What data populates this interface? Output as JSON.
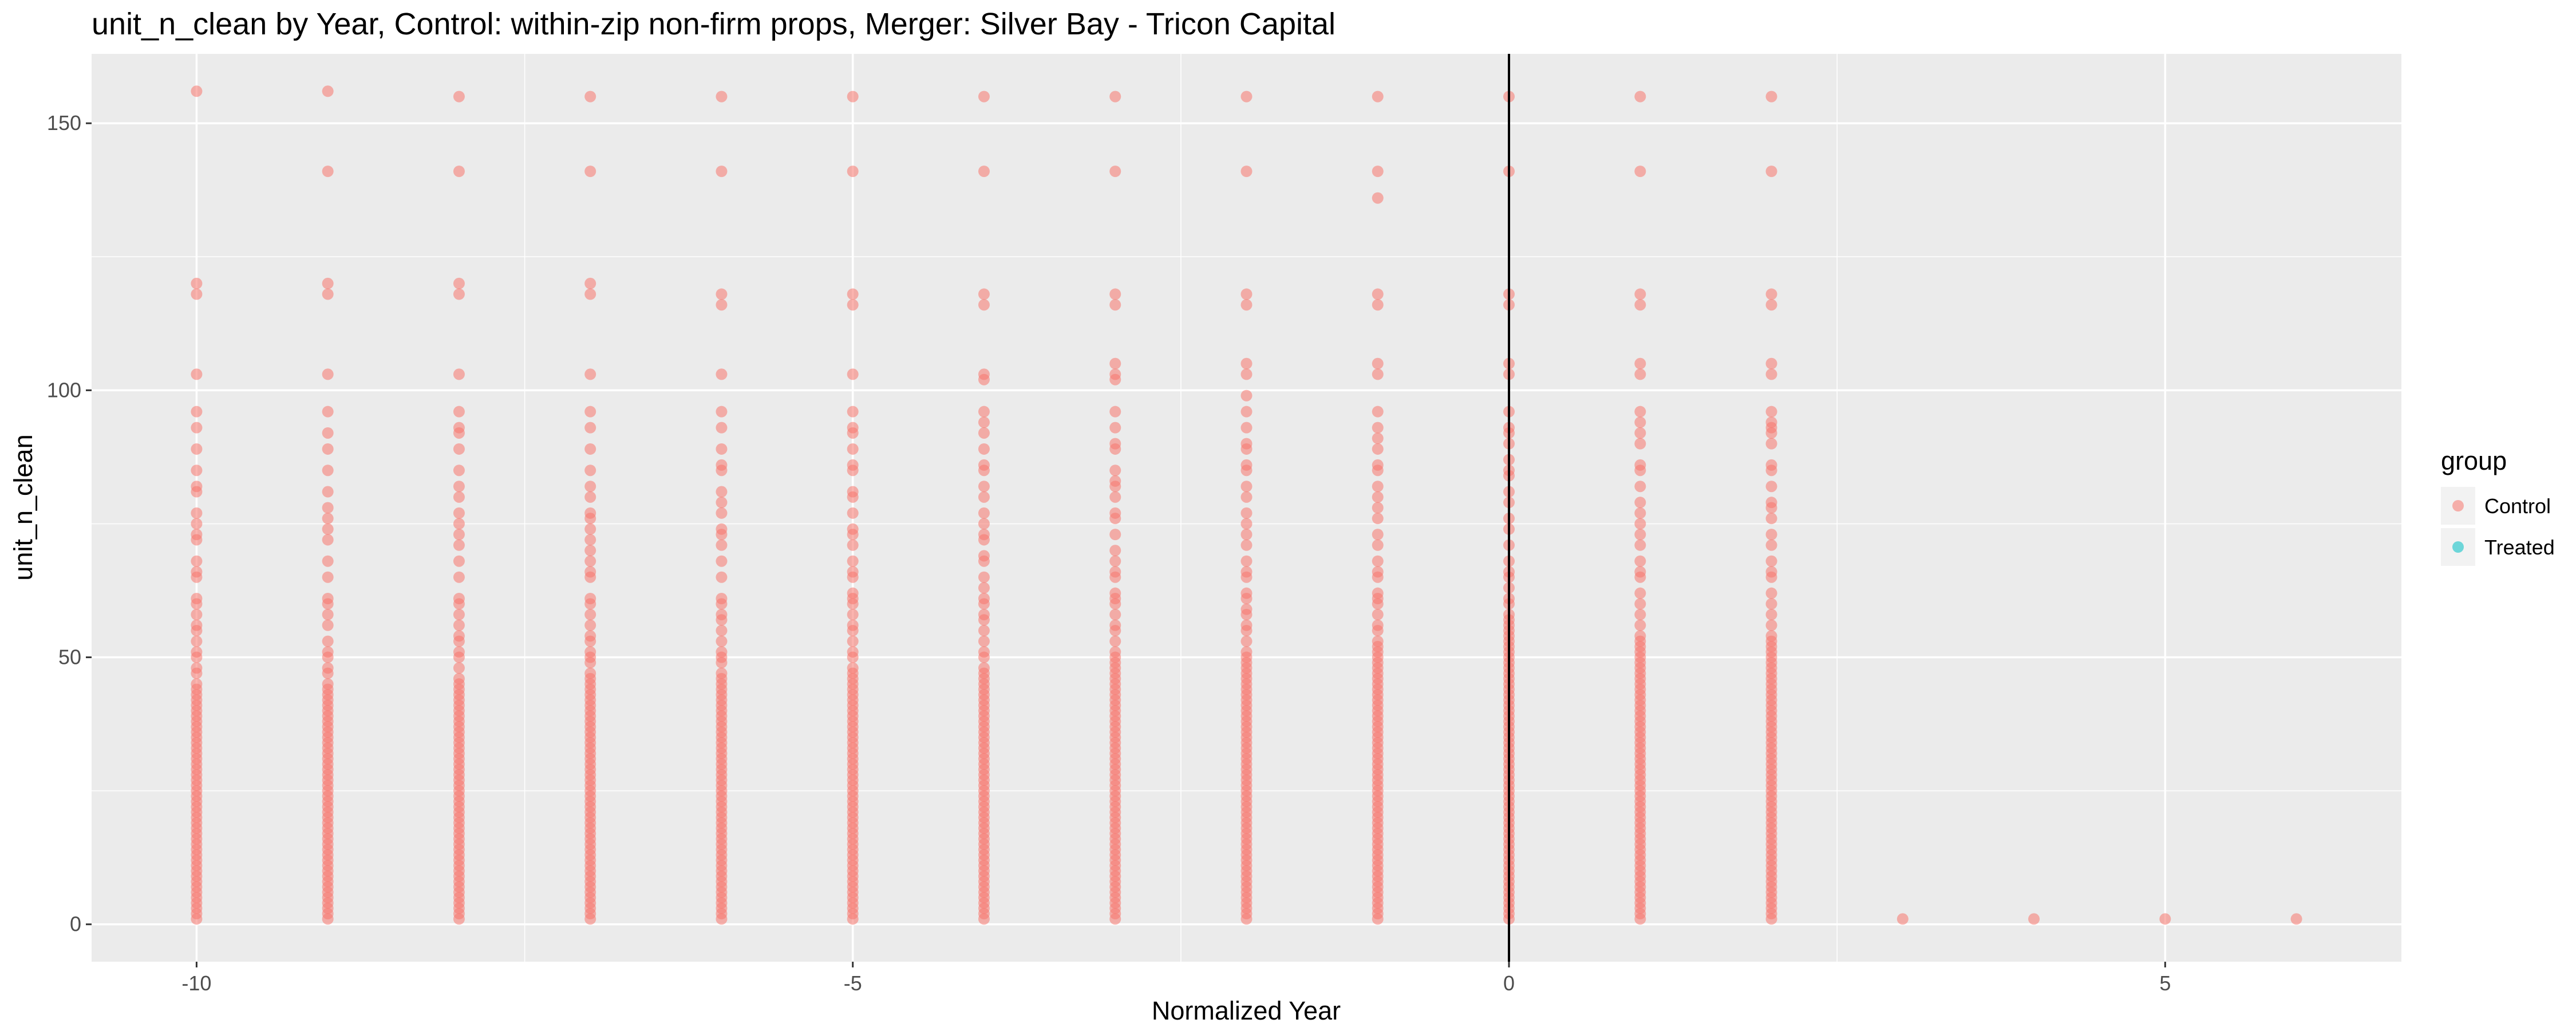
{
  "chart_data": {
    "type": "scatter",
    "title": "unit_n_clean by Year, Control: within-zip non-firm props, Merger: Silver Bay - Tricon Capital",
    "xlabel": "Normalized Year",
    "ylabel": "unit_n_clean",
    "xlim": [
      -10.8,
      6.8
    ],
    "ylim": [
      -7,
      163
    ],
    "x_ticks": [
      -10,
      -5,
      0,
      5
    ],
    "x_tick_labels": [
      "-10",
      "-5",
      "0",
      "5"
    ],
    "y_ticks": [
      0,
      50,
      100,
      150
    ],
    "y_tick_labels": [
      "0",
      "50",
      "100",
      "150"
    ],
    "grid": true,
    "legend_position": "right",
    "legend": {
      "title": "group",
      "entries": [
        {
          "label": "Control",
          "color": "#F8766D"
        },
        {
          "label": "Treated",
          "color": "#00BFC4"
        }
      ]
    },
    "vertical_reference_line": {
      "x": 0,
      "color": "#000000"
    },
    "series": [
      {
        "name": "Control",
        "color": "#F8766D",
        "opacity": 0.55,
        "dense_range": [
          {
            "x": -10,
            "from": 1,
            "to": 45
          },
          {
            "x": -9,
            "from": 1,
            "to": 45
          },
          {
            "x": -8,
            "from": 1,
            "to": 46
          },
          {
            "x": -7,
            "from": 1,
            "to": 47
          },
          {
            "x": -6,
            "from": 1,
            "to": 47
          },
          {
            "x": -5,
            "from": 1,
            "to": 48
          },
          {
            "x": -4,
            "from": 1,
            "to": 48
          },
          {
            "x": -3,
            "from": 1,
            "to": 49
          },
          {
            "x": -2,
            "from": 1,
            "to": 49
          },
          {
            "x": -1,
            "from": 1,
            "to": 50
          },
          {
            "x": 0,
            "from": 1,
            "to": 56
          },
          {
            "x": 1,
            "from": 1,
            "to": 52
          },
          {
            "x": 2,
            "from": 1,
            "to": 52
          }
        ],
        "points": [
          {
            "x": -10,
            "y": [
              156,
              120,
              118,
              103,
              96,
              93,
              89,
              85,
              82,
              81,
              77,
              75,
              73,
              72,
              68,
              66,
              65,
              61,
              60,
              58,
              56,
              55,
              53,
              51,
              50,
              48,
              47
            ]
          },
          {
            "x": -9,
            "y": [
              156,
              141,
              120,
              118,
              103,
              96,
              92,
              89,
              85,
              81,
              78,
              76,
              74,
              72,
              68,
              65,
              61,
              60,
              58,
              56,
              53,
              51,
              50,
              48,
              47
            ]
          },
          {
            "x": -8,
            "y": [
              155,
              141,
              120,
              118,
              103,
              96,
              93,
              92,
              89,
              85,
              82,
              80,
              77,
              75,
              73,
              71,
              68,
              65,
              61,
              60,
              58,
              56,
              54,
              53,
              51,
              50,
              48
            ]
          },
          {
            "x": -7,
            "y": [
              155,
              141,
              120,
              118,
              103,
              96,
              93,
              89,
              85,
              82,
              80,
              77,
              76,
              74,
              72,
              70,
              68,
              66,
              65,
              61,
              60,
              58,
              56,
              54,
              53,
              51,
              50,
              49
            ]
          },
          {
            "x": -6,
            "y": [
              155,
              141,
              118,
              116,
              103,
              96,
              93,
              89,
              86,
              85,
              81,
              79,
              77,
              74,
              73,
              71,
              68,
              65,
              61,
              60,
              58,
              57,
              55,
              53,
              51,
              50,
              49
            ]
          },
          {
            "x": -5,
            "y": [
              155,
              141,
              118,
              116,
              103,
              96,
              93,
              92,
              89,
              86,
              85,
              81,
              80,
              77,
              74,
              73,
              71,
              68,
              66,
              65,
              62,
              61,
              60,
              58,
              56,
              55,
              53,
              51,
              50
            ]
          },
          {
            "x": -4,
            "y": [
              155,
              141,
              118,
              116,
              103,
              102,
              96,
              94,
              92,
              89,
              86,
              85,
              82,
              80,
              77,
              75,
              73,
              72,
              69,
              68,
              65,
              63,
              61,
              60,
              58,
              57,
              55,
              53,
              51,
              50
            ]
          },
          {
            "x": -3,
            "y": [
              155,
              141,
              118,
              116,
              105,
              103,
              102,
              96,
              93,
              90,
              89,
              85,
              83,
              82,
              80,
              77,
              76,
              73,
              70,
              68,
              66,
              65,
              62,
              61,
              60,
              58,
              56,
              55,
              53,
              51,
              50
            ]
          },
          {
            "x": -2,
            "y": [
              155,
              141,
              118,
              116,
              105,
              103,
              99,
              96,
              93,
              90,
              89,
              86,
              85,
              82,
              80,
              77,
              75,
              73,
              71,
              68,
              66,
              65,
              62,
              61,
              59,
              58,
              56,
              55,
              53,
              51,
              50
            ]
          },
          {
            "x": -1,
            "y": [
              155,
              141,
              136,
              118,
              116,
              105,
              103,
              96,
              93,
              91,
              89,
              86,
              85,
              82,
              80,
              78,
              76,
              73,
              71,
              68,
              66,
              65,
              62,
              61,
              60,
              58,
              56,
              55,
              53,
              52,
              51
            ]
          },
          {
            "x": 0,
            "y": [
              155,
              141,
              118,
              116,
              105,
              103,
              96,
              93,
              92,
              90,
              87,
              85,
              84,
              81,
              79,
              76,
              74,
              71,
              68,
              66,
              65,
              63,
              61,
              60,
              58,
              57
            ]
          },
          {
            "x": 1,
            "y": [
              155,
              141,
              118,
              116,
              105,
              103,
              96,
              94,
              92,
              90,
              86,
              85,
              82,
              79,
              77,
              75,
              73,
              71,
              68,
              66,
              65,
              62,
              60,
              58,
              56,
              54,
              53
            ]
          },
          {
            "x": 2,
            "y": [
              155,
              141,
              118,
              116,
              105,
              103,
              96,
              94,
              93,
              92,
              90,
              86,
              85,
              82,
              79,
              78,
              76,
              73,
              71,
              68,
              66,
              65,
              62,
              60,
              58,
              56,
              54,
              53
            ]
          },
          {
            "x": 3,
            "y": [
              1
            ]
          },
          {
            "x": 4,
            "y": [
              1
            ]
          },
          {
            "x": 5,
            "y": [
              1
            ]
          },
          {
            "x": 6,
            "y": [
              1
            ]
          }
        ]
      }
    ]
  }
}
